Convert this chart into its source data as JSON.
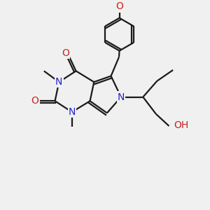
{
  "bg_color": "#f0f0f0",
  "bond_color": "#1a1a1a",
  "N_color": "#2222cc",
  "O_color": "#cc2222",
  "lw": 1.6,
  "fs": 9.5,
  "xlim": [
    0,
    10
  ],
  "ylim": [
    0,
    10
  ]
}
